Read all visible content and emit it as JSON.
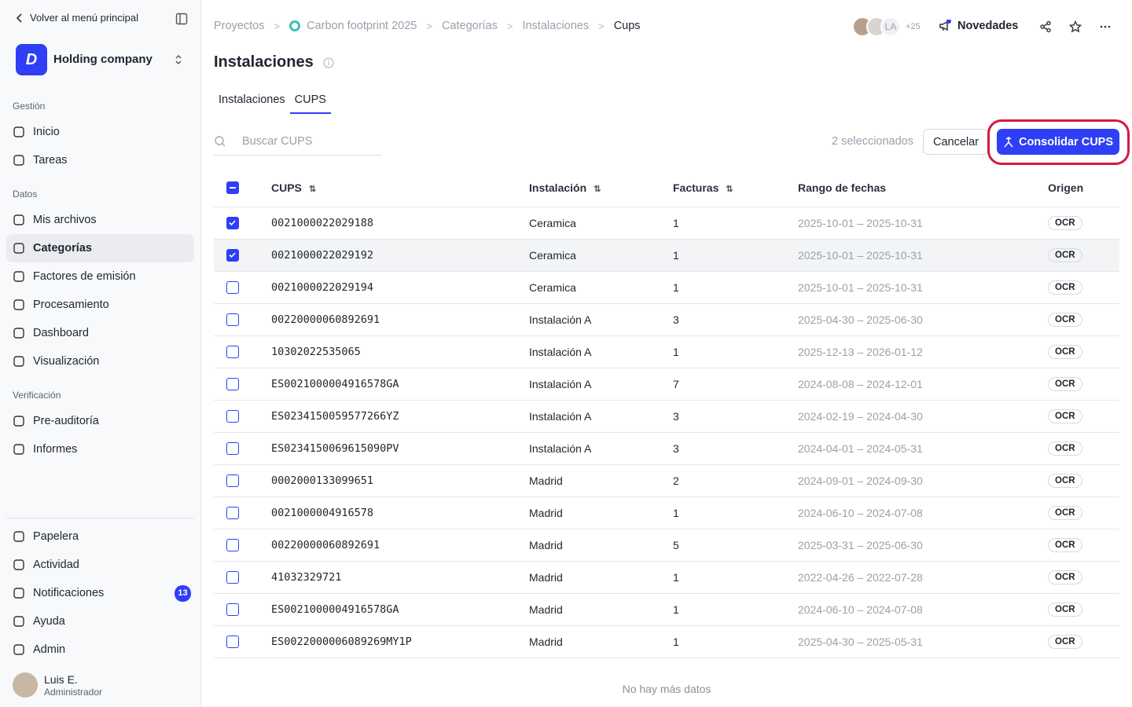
{
  "sidebar": {
    "back": "Volver al menú principal",
    "org": "Holding company",
    "sections": [
      {
        "label": "Gestión",
        "items": [
          "Inicio",
          "Tareas"
        ]
      },
      {
        "label": "Datos",
        "items": [
          "Mis archivos",
          "Categorías",
          "Factores de emisión",
          "Procesamiento",
          "Dashboard",
          "Visualización"
        ]
      },
      {
        "label": "Verificación",
        "items": [
          "Pre-auditoría",
          "Informes"
        ]
      }
    ],
    "active": "Categorías",
    "bottom": [
      "Papelera",
      "Actividad",
      "Notificaciones",
      "Ayuda",
      "Admin"
    ],
    "notifications_badge": "13",
    "user": {
      "name": "Luis E.",
      "role": "Administrador"
    }
  },
  "header": {
    "breadcrumbs": [
      "Proyectos",
      "Carbon footprint 2025",
      "Categorías",
      "Instalaciones",
      "Cups"
    ],
    "avatar_initials": "LA",
    "avatar_more": "+25",
    "news": "Novedades"
  },
  "page": {
    "title": "Instalaciones",
    "tabs": [
      "Instalaciones",
      "CUPS"
    ],
    "active_tab": 1,
    "search_placeholder": "Buscar CUPS",
    "selection": "2 seleccionados",
    "cancel": "Cancelar",
    "consolidate": "Consolidar CUPS"
  },
  "table": {
    "columns": [
      "CUPS",
      "Instalación",
      "Facturas",
      "Rango de fechas",
      "Origen"
    ],
    "rows": [
      {
        "checked": true,
        "cells": [
          "0021000022029188",
          "Ceramica",
          "1",
          "2025-10-01 – 2025-10-31",
          "OCR"
        ]
      },
      {
        "checked": true,
        "cells": [
          "0021000022029192",
          "Ceramica",
          "1",
          "2025-10-01 – 2025-10-31",
          "OCR"
        ]
      },
      {
        "checked": false,
        "cells": [
          "0021000022029194",
          "Ceramica",
          "1",
          "2025-10-01 – 2025-10-31",
          "OCR"
        ]
      },
      {
        "checked": false,
        "cells": [
          "00220000060892691",
          "Instalación A",
          "3",
          "2025-04-30 – 2025-06-30",
          "OCR"
        ]
      },
      {
        "checked": false,
        "cells": [
          "10302022535065",
          "Instalación A",
          "1",
          "2025-12-13 – 2026-01-12",
          "OCR"
        ]
      },
      {
        "checked": false,
        "cells": [
          "ES0021000004916578GA",
          "Instalación A",
          "7",
          "2024-08-08 – 2024-12-01",
          "OCR"
        ]
      },
      {
        "checked": false,
        "cells": [
          "ES0234150059577266YZ",
          "Instalación A",
          "3",
          "2024-02-19 – 2024-04-30",
          "OCR"
        ]
      },
      {
        "checked": false,
        "cells": [
          "ES0234150069615090PV",
          "Instalación A",
          "3",
          "2024-04-01 – 2024-05-31",
          "OCR"
        ]
      },
      {
        "checked": false,
        "cells": [
          "0002000133099651",
          "Madrid",
          "2",
          "2024-09-01 – 2024-09-30",
          "OCR"
        ]
      },
      {
        "checked": false,
        "cells": [
          "0021000004916578",
          "Madrid",
          "1",
          "2024-06-10 – 2024-07-08",
          "OCR"
        ]
      },
      {
        "checked": false,
        "cells": [
          "00220000060892691",
          "Madrid",
          "5",
          "2025-03-31 – 2025-06-30",
          "OCR"
        ]
      },
      {
        "checked": false,
        "cells": [
          "41032329721",
          "Madrid",
          "1",
          "2022-04-26 – 2022-07-28",
          "OCR"
        ]
      },
      {
        "checked": false,
        "cells": [
          "ES0021000004916578GA",
          "Madrid",
          "1",
          "2024-06-10 – 2024-07-08",
          "OCR"
        ]
      },
      {
        "checked": false,
        "cells": [
          "ES0022000006089269MY1P",
          "Madrid",
          "1",
          "2025-04-30 – 2025-05-31",
          "OCR"
        ]
      }
    ],
    "footer": "No hay más datos"
  }
}
